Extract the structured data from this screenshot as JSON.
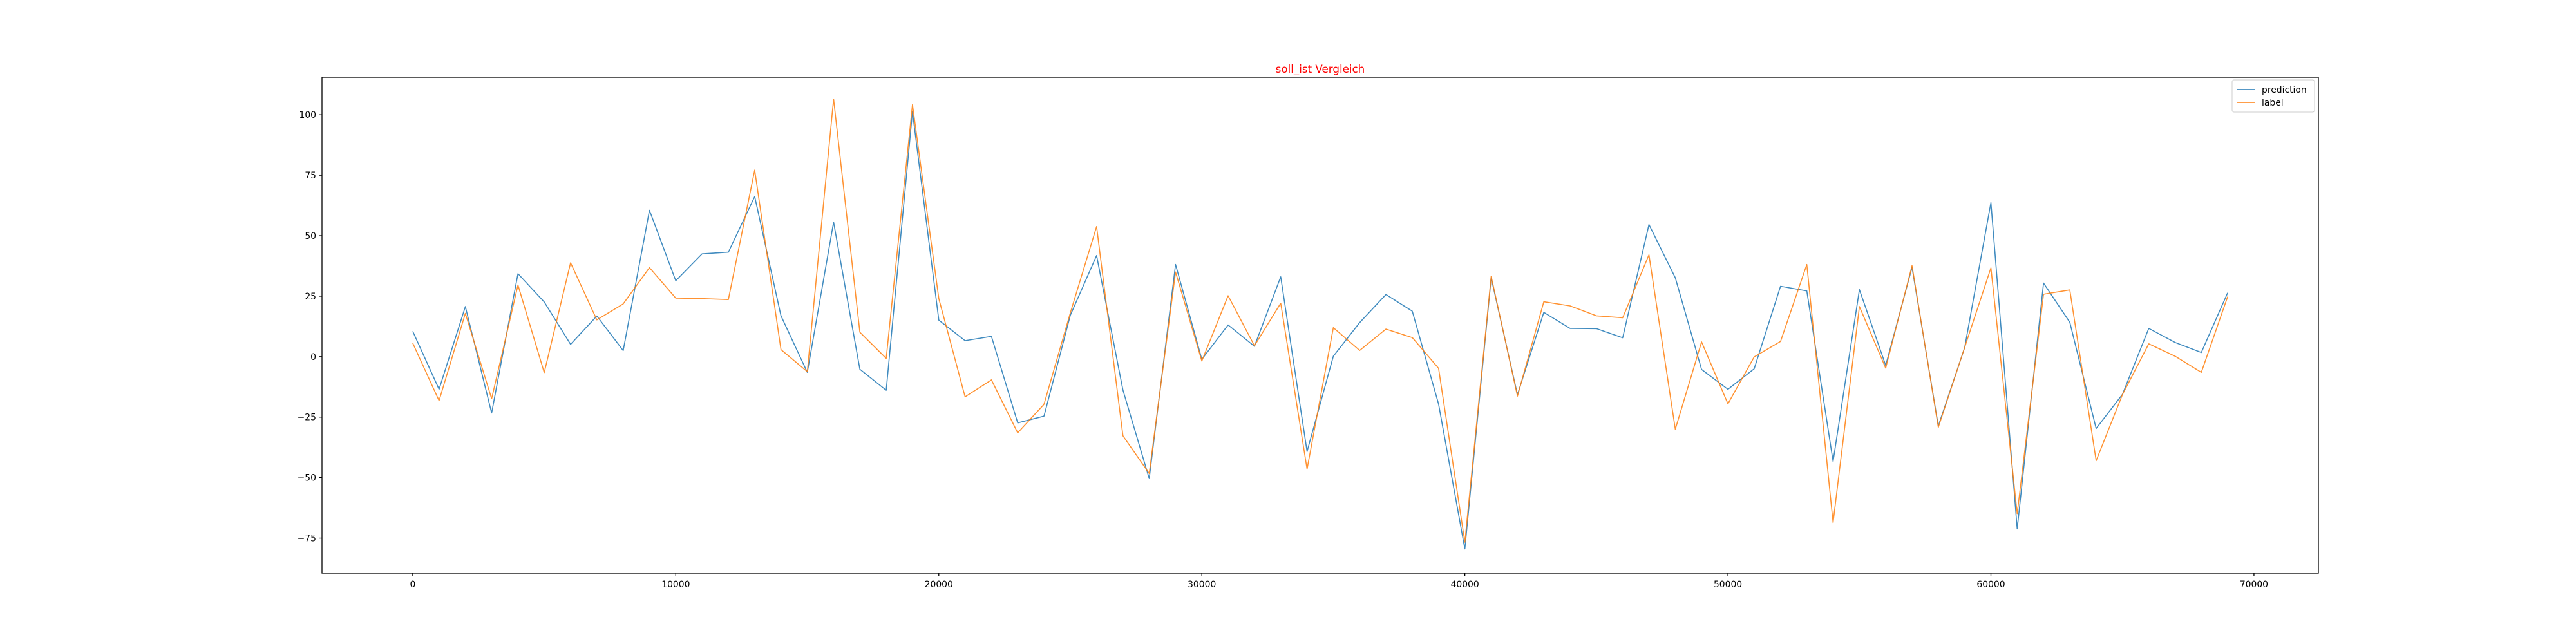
{
  "chart_data": {
    "type": "line",
    "title": "soll_ist Vergleich",
    "title_color": "#ff0000",
    "xlabel": "",
    "ylabel": "",
    "xlim": [
      -3450,
      72450
    ],
    "ylim": [
      -89.5,
      115.5
    ],
    "x_ticks": [
      0,
      10000,
      20000,
      30000,
      40000,
      50000,
      60000,
      70000
    ],
    "y_ticks": [
      -75,
      -50,
      -25,
      0,
      25,
      50,
      75,
      100
    ],
    "grid": false,
    "legend_position": "top-right",
    "x": [
      0,
      1000,
      2000,
      3000,
      4000,
      5000,
      6000,
      7000,
      8000,
      9000,
      10000,
      11000,
      12000,
      13000,
      14000,
      15000,
      16000,
      17000,
      18000,
      19000,
      20000,
      21000,
      22000,
      23000,
      24000,
      25000,
      26000,
      27000,
      28000,
      29000,
      30000,
      31000,
      32000,
      33000,
      34000,
      35000,
      36000,
      37000,
      38000,
      39000,
      40000,
      41000,
      42000,
      43000,
      44000,
      45000,
      46000,
      47000,
      48000,
      49000,
      50000,
      51000,
      52000,
      53000,
      54000,
      55000,
      56000,
      57000,
      58000,
      59000,
      60000,
      61000,
      62000,
      63000,
      64000,
      65000,
      66000,
      67000,
      68000,
      69000
    ],
    "series": [
      {
        "name": "prediction",
        "color": "#1f77b4",
        "values": [
          10.5,
          -13.5,
          20.7,
          -23.3,
          34.3,
          22.6,
          5.1,
          16.8,
          2.5,
          60.5,
          31.4,
          42.5,
          43.2,
          66.2,
          16.9,
          -6.5,
          55.6,
          -5.2,
          -13.9,
          101.2,
          15.1,
          6.6,
          8.4,
          -27.4,
          -24.6,
          17.1,
          41.8,
          -13.8,
          -50.4,
          38.1,
          -1.1,
          13.1,
          4.3,
          33.0,
          -39.2,
          0.2,
          14.1,
          25.7,
          18.8,
          -19.6,
          -79.5,
          32.6,
          -15.7,
          18.3,
          11.7,
          11.6,
          7.8,
          54.6,
          32.6,
          -5.3,
          -13.5,
          -5.0,
          29.1,
          27.2,
          -43.3,
          27.7,
          -3.6,
          36.9,
          -28.6,
          3.7,
          63.7,
          -71.2,
          30.4,
          14.2,
          -29.7,
          -15.6,
          11.7,
          5.9,
          1.7,
          26.4
        ]
      },
      {
        "name": "label",
        "color": "#ff7f0e",
        "values": [
          5.6,
          -18.2,
          17.9,
          -17.4,
          29.6,
          -6.6,
          38.8,
          15.2,
          21.8,
          36.8,
          24.2,
          24.0,
          23.6,
          77.1,
          2.9,
          -6.2,
          106.5,
          10.1,
          -0.7,
          104.2,
          24.0,
          -16.6,
          -9.6,
          -31.5,
          -19.7,
          18.1,
          53.8,
          -32.7,
          -48.3,
          35.0,
          -1.8,
          25.2,
          4.5,
          22.1,
          -46.5,
          12.0,
          2.6,
          11.4,
          7.9,
          -4.8,
          -76.7,
          33.2,
          -16.3,
          22.7,
          21.0,
          16.9,
          16.1,
          42.1,
          -30.0,
          6.1,
          -19.5,
          -0.1,
          6.3,
          38.1,
          -68.6,
          20.7,
          -4.7,
          37.6,
          -29.2,
          3.8,
          36.7,
          -64.9,
          25.8,
          27.6,
          -43.0,
          -15.7,
          5.3,
          0.2,
          -6.5,
          24.8
        ]
      }
    ]
  }
}
